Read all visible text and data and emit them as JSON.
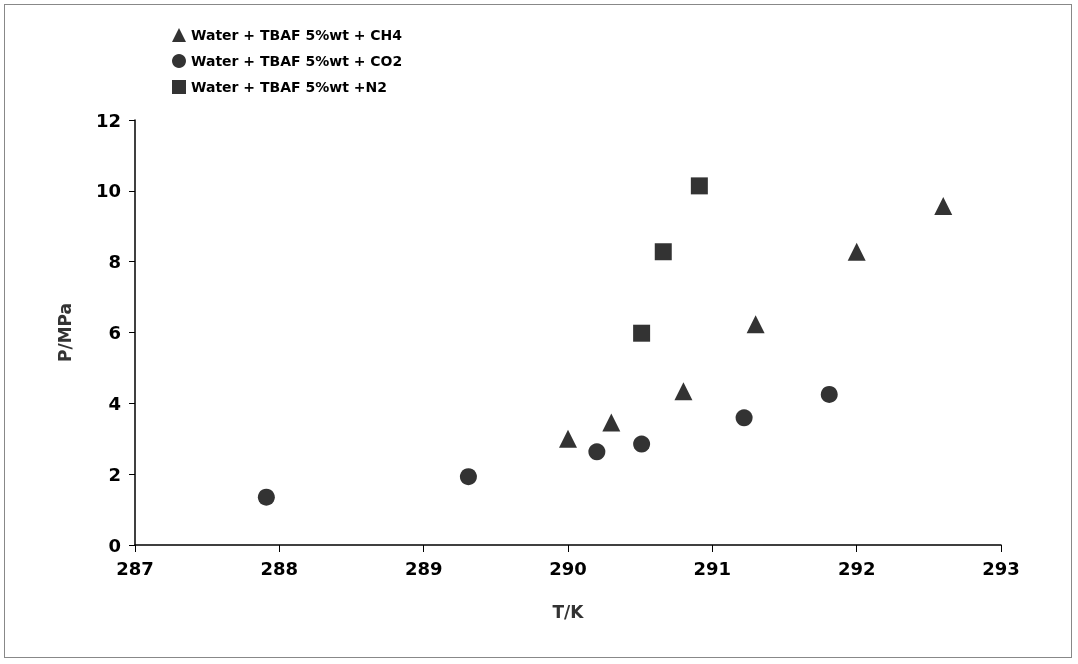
{
  "chart_data": {
    "type": "scatter",
    "xlabel": "T/K",
    "ylabel": "P/MPa",
    "xlim": [
      287,
      293
    ],
    "xticks": [
      287,
      288,
      289,
      290,
      291,
      292,
      293
    ],
    "ylim": [
      0,
      12
    ],
    "yticks": [
      0,
      2,
      4,
      6,
      8,
      10,
      12
    ],
    "grid": false,
    "legend": "top left",
    "series": [
      {
        "name": "Water + TBAF 5%wt + CH4",
        "color": "#000000",
        "marker": "triangle",
        "x": [
          290.0,
          290.3,
          290.8,
          291.3,
          292.0,
          292.6
        ],
        "values": [
          3.0,
          3.46,
          4.34,
          6.23,
          8.28,
          9.57
        ]
      },
      {
        "name": "Water + TBAF 5%wt + CO2",
        "color": "#000000",
        "marker": "circle",
        "x": [
          287.91,
          289.31,
          290.2,
          290.51,
          291.22,
          291.81
        ],
        "values": [
          1.35,
          1.93,
          2.63,
          2.85,
          3.59,
          4.25
        ]
      },
      {
        "name": "Water + TBAF 5%wt +N2",
        "color": "#000000",
        "marker": "square",
        "x": [
          290.51,
          290.66,
          290.91
        ],
        "values": [
          5.98,
          8.28,
          10.14
        ]
      }
    ]
  }
}
